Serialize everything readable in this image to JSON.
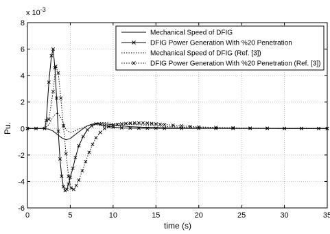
{
  "chart_data": {
    "type": "line",
    "title": "",
    "xlabel": "time (s)",
    "ylabel": "Pu.",
    "y_exponent": "x 10",
    "y_exponent_power": "-3",
    "xlim": [
      0,
      35
    ],
    "ylim": [
      -6,
      8
    ],
    "x_ticks": [
      "0",
      "5",
      "10",
      "15",
      "20",
      "25",
      "30",
      "35"
    ],
    "y_ticks": [
      "-6",
      "-4",
      "-2",
      "0",
      "2",
      "4",
      "6",
      "8"
    ],
    "grid": true,
    "legend_position": "top-right",
    "series": [
      {
        "name": "Mechanical Speed of DFIG",
        "style": "solid",
        "marker": "none",
        "x": [
          0,
          2,
          2.5,
          3,
          3.5,
          4,
          4.5,
          5,
          5.5,
          6,
          6.5,
          7,
          7.5,
          8,
          9,
          10,
          11,
          12,
          14,
          16,
          18,
          20,
          25,
          30,
          35
        ],
        "y": [
          0,
          0,
          -0.05,
          -0.2,
          -0.45,
          -0.7,
          -0.85,
          -0.75,
          -0.5,
          -0.25,
          0,
          0.2,
          0.32,
          0.38,
          0.35,
          0.28,
          0.2,
          0.14,
          0.08,
          0.05,
          0.03,
          0.02,
          0.01,
          0.005,
          0
        ]
      },
      {
        "name": "DFIG Power Generation With %20 Penetration",
        "style": "solid",
        "marker": "x",
        "x": [
          0,
          1,
          2,
          2.2,
          2.5,
          2.8,
          3.0,
          3.2,
          3.4,
          3.6,
          3.8,
          4.0,
          4.2,
          4.4,
          4.6,
          4.8,
          5.0,
          5.3,
          5.6,
          6.0,
          6.5,
          7.0,
          7.5,
          8.0,
          8.5,
          9.0,
          9.5,
          10,
          11,
          12,
          13,
          14,
          15,
          16,
          18,
          20,
          22,
          24,
          26,
          28,
          30,
          32,
          34,
          35
        ],
        "y": [
          0,
          0,
          0,
          0.6,
          3.5,
          5.5,
          6.0,
          4.6,
          2.3,
          -0.2,
          -2.3,
          -3.6,
          -4.4,
          -4.7,
          -4.6,
          -4.2,
          -3.7,
          -3.0,
          -2.2,
          -1.3,
          -0.6,
          -0.1,
          0.2,
          0.35,
          0.3,
          0.22,
          0.15,
          0.1,
          0.05,
          0.03,
          0.02,
          0.02,
          0.02,
          0.01,
          0.01,
          0.01,
          0.01,
          0.01,
          0.01,
          0.01,
          0,
          0,
          0,
          0
        ]
      },
      {
        "name": "Mechanical Speed of DFIG (Ref. [3])",
        "style": "dotted",
        "marker": "none",
        "x": [
          0,
          2,
          2.5,
          3,
          3.5,
          4,
          4.5,
          5,
          5.5,
          6,
          6.5,
          7,
          7.5,
          8,
          8.5,
          9,
          10,
          11,
          12,
          13,
          14,
          15,
          16,
          18,
          20,
          25,
          30,
          35
        ],
        "y": [
          0,
          0,
          0.3,
          0.9,
          1.2,
          0.7,
          -0.1,
          -0.3,
          -0.2,
          -0.05,
          0.08,
          0.2,
          0.3,
          0.4,
          0.45,
          0.45,
          0.4,
          0.35,
          0.3,
          0.28,
          0.25,
          0.2,
          0.15,
          0.1,
          0.06,
          0.02,
          0.01,
          0
        ]
      },
      {
        "name": "DFIG Power Generation With %20 Penetration (Ref. [3])",
        "style": "dotted",
        "marker": "x",
        "x": [
          0,
          1,
          2,
          2.5,
          3.0,
          3.3,
          3.6,
          3.9,
          4.2,
          4.5,
          4.8,
          5.1,
          5.4,
          5.7,
          6.0,
          6.4,
          6.8,
          7.2,
          7.6,
          8.0,
          8.5,
          9.0,
          9.5,
          10,
          10.5,
          11,
          11.5,
          12,
          12.5,
          13,
          13.5,
          14,
          14.5,
          15,
          15.5,
          16,
          17,
          18,
          19,
          20,
          22,
          24,
          26,
          28,
          30,
          32,
          34,
          35
        ],
        "y": [
          0,
          0,
          0,
          0.7,
          2.8,
          4.7,
          4.2,
          2.3,
          0.2,
          -1.9,
          -3.6,
          -4.5,
          -4.6,
          -4.3,
          -3.9,
          -3.2,
          -2.5,
          -1.8,
          -1.2,
          -0.7,
          -0.3,
          0,
          0.15,
          0.25,
          0.3,
          0.35,
          0.38,
          0.4,
          0.42,
          0.42,
          0.42,
          0.4,
          0.38,
          0.35,
          0.32,
          0.3,
          0.25,
          0.2,
          0.15,
          0.12,
          0.08,
          0.05,
          0.03,
          0.02,
          0.01,
          0.01,
          0,
          0
        ]
      }
    ]
  }
}
